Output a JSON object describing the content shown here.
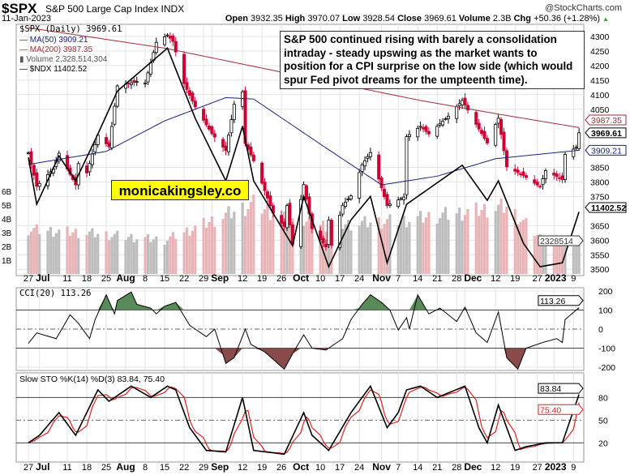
{
  "header": {
    "symbol": "$SPX",
    "name": "S&P 500 Large Cap Index INDX",
    "source": "@StockCharts.com",
    "date": "11-Jan-2023",
    "open_label": "Open",
    "open": "3932.35",
    "high_label": "High",
    "high": "3970.07",
    "low_label": "Low",
    "low": "3928.54",
    "close_label": "Close",
    "close": "3969.61",
    "volume_label": "Volume",
    "volume": "2.3B",
    "chg_label": "Chg",
    "chg": "+50.36 (+1.28%)"
  },
  "legend": {
    "price": "$SPX (Daily) 3969.61",
    "ma50": "MA(50) 3909.21",
    "ma200": "MA(200) 3987.35",
    "volume": "Volume 2,328,514,304",
    "ndx": "$NDX 11402.52"
  },
  "annotation": "S&P 500 continued rising with barely a consolidation intraday - steady upswing as the market wants to position for a CPI surprise on the low side (which would spur Fed pivot dreams for the umpteenth time).",
  "watermark": "monicakingsley.co",
  "tags": {
    "ma200": "3987.35",
    "close": "3969.61",
    "ma50": "3909.21",
    "ndx": "11402.52",
    "volume": "2328514",
    "cci": "113.26",
    "k": "83.84",
    "d": "75.40"
  },
  "colors": {
    "up": "#000000",
    "down": "#cc0033",
    "ma50": "#1a237e",
    "ma200": "#a52a3a",
    "cci_pos": "#5a8a5a",
    "cci_neg": "#8b4a4a",
    "sto_d": "#e02020",
    "volume_up": "#bdbdbd",
    "volume_down": "#e8b4b8"
  },
  "chart_data": [
    {
      "type": "candlestick",
      "title": "$SPX (Daily)",
      "ylim": [
        3475,
        4330
      ],
      "yticks": [
        4300,
        4250,
        4200,
        4150,
        4100,
        4050,
        3850,
        3800,
        3750,
        3650,
        3600,
        3550,
        3500
      ],
      "volume_ticks": [
        "6B",
        "5B",
        "4B",
        "3B",
        "2B",
        "1B"
      ],
      "xticks": [
        {
          "d": "2022-06-27",
          "l": "27"
        },
        {
          "d": "2022-07-01",
          "l": "Jul",
          "b": 1
        },
        {
          "d": "2022-07-11",
          "l": "11"
        },
        {
          "d": "2022-07-18",
          "l": "18"
        },
        {
          "d": "2022-07-25",
          "l": "25"
        },
        {
          "d": "2022-08-01",
          "l": "Aug",
          "b": 1
        },
        {
          "d": "2022-08-08",
          "l": "8"
        },
        {
          "d": "2022-08-15",
          "l": "15"
        },
        {
          "d": "2022-08-22",
          "l": "22"
        },
        {
          "d": "2022-08-29",
          "l": "29"
        },
        {
          "d": "2022-09-01",
          "l": "Sep",
          "b": 1
        },
        {
          "d": "2022-09-12",
          "l": "12"
        },
        {
          "d": "2022-09-19",
          "l": "19"
        },
        {
          "d": "2022-09-26",
          "l": "26"
        },
        {
          "d": "2022-10-03",
          "l": "Oct",
          "b": 1
        },
        {
          "d": "2022-10-10",
          "l": "10"
        },
        {
          "d": "2022-10-17",
          "l": "17"
        },
        {
          "d": "2022-10-24",
          "l": "24"
        },
        {
          "d": "2022-11-01",
          "l": "Nov",
          "b": 1
        },
        {
          "d": "2022-11-07",
          "l": "7"
        },
        {
          "d": "2022-11-14",
          "l": "14"
        },
        {
          "d": "2022-11-21",
          "l": "21"
        },
        {
          "d": "2022-11-28",
          "l": "28"
        },
        {
          "d": "2022-12-01",
          "l": "Dec",
          "b": 1
        },
        {
          "d": "2022-12-12",
          "l": "12"
        },
        {
          "d": "2022-12-19",
          "l": "19"
        },
        {
          "d": "2022-12-27",
          "l": "27"
        },
        {
          "d": "2023-01-02",
          "l": "2023",
          "b": 1
        },
        {
          "d": "2023-01-09",
          "l": "9"
        }
      ],
      "close": [
        [
          "2022-06-27",
          3900
        ],
        [
          "2022-06-30",
          3785
        ],
        [
          "2022-07-06",
          3845
        ],
        [
          "2022-07-08",
          3899
        ],
        [
          "2022-07-14",
          3790
        ],
        [
          "2022-07-15",
          3863
        ],
        [
          "2022-07-18",
          3831
        ],
        [
          "2022-07-22",
          3961
        ],
        [
          "2022-07-26",
          3921
        ],
        [
          "2022-07-29",
          4130
        ],
        [
          "2022-08-05",
          4145
        ],
        [
          "2022-08-08",
          4140
        ],
        [
          "2022-08-12",
          4280
        ],
        [
          "2022-08-16",
          4305
        ],
        [
          "2022-08-18",
          4283
        ],
        [
          "2022-08-22",
          4138
        ],
        [
          "2022-08-26",
          4058
        ],
        [
          "2022-09-01",
          3966
        ],
        [
          "2022-09-06",
          3908
        ],
        [
          "2022-09-09",
          4067
        ],
        [
          "2022-09-12",
          4110
        ],
        [
          "2022-09-13",
          3932
        ],
        [
          "2022-09-16",
          3873
        ],
        [
          "2022-09-23",
          3693
        ],
        [
          "2022-09-27",
          3647
        ],
        [
          "2022-09-28",
          3719
        ],
        [
          "2022-09-30",
          3586
        ],
        [
          "2022-10-04",
          3791
        ],
        [
          "2022-10-07",
          3640
        ],
        [
          "2022-10-12",
          3577
        ],
        [
          "2022-10-13",
          3669
        ],
        [
          "2022-10-14",
          3583
        ],
        [
          "2022-10-18",
          3720
        ],
        [
          "2022-10-21",
          3752
        ],
        [
          "2022-10-25",
          3859
        ],
        [
          "2022-10-28",
          3901
        ],
        [
          "2022-11-03",
          3719
        ],
        [
          "2022-11-09",
          3748
        ],
        [
          "2022-11-10",
          3956
        ],
        [
          "2022-11-15",
          3991
        ],
        [
          "2022-11-18",
          3965
        ],
        [
          "2022-11-25",
          4026
        ],
        [
          "2022-11-30",
          4080
        ],
        [
          "2022-12-05",
          3998
        ],
        [
          "2022-12-09",
          3934
        ],
        [
          "2022-12-13",
          4019
        ],
        [
          "2022-12-16",
          3852
        ],
        [
          "2022-12-22",
          3822
        ],
        [
          "2022-12-28",
          3783
        ],
        [
          "2022-12-30",
          3839
        ],
        [
          "2023-01-05",
          3808
        ],
        [
          "2023-01-06",
          3895
        ],
        [
          "2023-01-10",
          3919
        ],
        [
          "2023-01-11",
          3969
        ]
      ],
      "ma50": [
        [
          "2022-06-27",
          3860
        ],
        [
          "2022-07-25",
          3905
        ],
        [
          "2022-08-15",
          4010
        ],
        [
          "2022-09-06",
          4090
        ],
        [
          "2022-09-16",
          4085
        ],
        [
          "2022-10-10",
          3930
        ],
        [
          "2022-11-01",
          3790
        ],
        [
          "2022-11-21",
          3820
        ],
        [
          "2022-12-12",
          3880
        ],
        [
          "2023-01-11",
          3909
        ]
      ],
      "ma200": [
        [
          "2022-06-27",
          4330
        ],
        [
          "2022-08-15",
          4260
        ],
        [
          "2022-10-10",
          4150
        ],
        [
          "2022-11-15",
          4080
        ],
        [
          "2022-12-15",
          4030
        ],
        [
          "2023-01-11",
          3987
        ]
      ],
      "ndx": [
        [
          "2022-06-27",
          12100
        ],
        [
          "2022-06-30",
          11500
        ],
        [
          "2022-07-08",
          12120
        ],
        [
          "2022-07-14",
          11800
        ],
        [
          "2022-07-22",
          12400
        ],
        [
          "2022-07-29",
          12950
        ],
        [
          "2022-08-16",
          13500
        ],
        [
          "2022-08-26",
          12600
        ],
        [
          "2022-09-06",
          11800
        ],
        [
          "2022-09-12",
          12500
        ],
        [
          "2022-09-16",
          11800
        ],
        [
          "2022-09-30",
          10970
        ],
        [
          "2022-10-04",
          11600
        ],
        [
          "2022-10-13",
          10700
        ],
        [
          "2022-10-21",
          11300
        ],
        [
          "2022-10-28",
          11600
        ],
        [
          "2022-11-03",
          10750
        ],
        [
          "2022-11-10",
          11500
        ],
        [
          "2022-11-30",
          12000
        ],
        [
          "2022-12-09",
          11550
        ],
        [
          "2022-12-13",
          11800
        ],
        [
          "2022-12-22",
          11000
        ],
        [
          "2022-12-28",
          10700
        ],
        [
          "2023-01-05",
          10750
        ],
        [
          "2023-01-11",
          11402
        ]
      ],
      "volume_b": [
        [
          "2022-06-27",
          3.3
        ],
        [
          "2022-07-20",
          3.0
        ],
        [
          "2022-08-15",
          2.5
        ],
        [
          "2022-09-16",
          5.2
        ],
        [
          "2022-09-30",
          3.8
        ],
        [
          "2022-10-13",
          3.6
        ],
        [
          "2022-11-10",
          4.0
        ],
        [
          "2022-12-16",
          5.0
        ],
        [
          "2022-12-28",
          2.7
        ],
        [
          "2023-01-11",
          2.3
        ]
      ]
    },
    {
      "type": "line",
      "title": "CCI(20) 113.26",
      "ylim": [
        -230,
        230
      ],
      "yticks": [
        200,
        100,
        0,
        -100,
        -200
      ],
      "values": [
        [
          "2022-06-27",
          -75
        ],
        [
          "2022-06-30",
          -20
        ],
        [
          "2022-07-07",
          -50
        ],
        [
          "2022-07-12",
          75
        ],
        [
          "2022-07-15",
          30
        ],
        [
          "2022-07-19",
          -50
        ],
        [
          "2022-07-21",
          50
        ],
        [
          "2022-07-25",
          180
        ],
        [
          "2022-07-28",
          80
        ],
        [
          "2022-07-29",
          150
        ],
        [
          "2022-08-03",
          195
        ],
        [
          "2022-08-05",
          130
        ],
        [
          "2022-08-10",
          110
        ],
        [
          "2022-08-12",
          80
        ],
        [
          "2022-08-15",
          120
        ],
        [
          "2022-08-19",
          140
        ],
        [
          "2022-08-24",
          20
        ],
        [
          "2022-08-30",
          -40
        ],
        [
          "2022-09-02",
          0
        ],
        [
          "2022-09-06",
          -180
        ],
        [
          "2022-09-09",
          -150
        ],
        [
          "2022-09-13",
          0
        ],
        [
          "2022-09-15",
          -80
        ],
        [
          "2022-09-20",
          -120
        ],
        [
          "2022-09-27",
          -210
        ],
        [
          "2022-09-30",
          -130
        ],
        [
          "2022-10-04",
          -30
        ],
        [
          "2022-10-07",
          -100
        ],
        [
          "2022-10-12",
          -110
        ],
        [
          "2022-10-18",
          -50
        ],
        [
          "2022-10-21",
          50
        ],
        [
          "2022-10-25",
          130
        ],
        [
          "2022-10-28",
          180
        ],
        [
          "2022-11-01",
          140
        ],
        [
          "2022-11-04",
          100
        ],
        [
          "2022-11-07",
          -5
        ],
        [
          "2022-11-10",
          60
        ],
        [
          "2022-11-11",
          0
        ],
        [
          "2022-11-14",
          180
        ],
        [
          "2022-11-18",
          80
        ],
        [
          "2022-11-22",
          110
        ],
        [
          "2022-11-28",
          40
        ],
        [
          "2022-12-01",
          115
        ],
        [
          "2022-12-05",
          -20
        ],
        [
          "2022-12-09",
          -70
        ],
        [
          "2022-12-13",
          90
        ],
        [
          "2022-12-16",
          -150
        ],
        [
          "2022-12-20",
          -210
        ],
        [
          "2022-12-23",
          -100
        ],
        [
          "2022-12-29",
          -70
        ],
        [
          "2023-01-03",
          -50
        ],
        [
          "2023-01-05",
          -70
        ],
        [
          "2023-01-06",
          50
        ],
        [
          "2023-01-11",
          113
        ]
      ]
    },
    {
      "type": "line",
      "title": "Slow STO %K(14) %D(3) 83.84, 75.40",
      "ylim": [
        0,
        100
      ],
      "yticks": [
        80,
        50,
        20
      ],
      "k": [
        [
          "2022-06-27",
          20
        ],
        [
          "2022-07-01",
          30
        ],
        [
          "2022-07-08",
          60
        ],
        [
          "2022-07-14",
          30
        ],
        [
          "2022-07-22",
          90
        ],
        [
          "2022-07-26",
          75
        ],
        [
          "2022-08-03",
          95
        ],
        [
          "2022-08-10",
          80
        ],
        [
          "2022-08-16",
          95
        ],
        [
          "2022-08-19",
          90
        ],
        [
          "2022-08-24",
          40
        ],
        [
          "2022-08-30",
          10
        ],
        [
          "2022-09-06",
          8
        ],
        [
          "2022-09-12",
          80
        ],
        [
          "2022-09-16",
          10
        ],
        [
          "2022-09-27",
          5
        ],
        [
          "2022-10-04",
          60
        ],
        [
          "2022-10-07",
          30
        ],
        [
          "2022-10-13",
          10
        ],
        [
          "2022-10-21",
          60
        ],
        [
          "2022-10-28",
          95
        ],
        [
          "2022-11-03",
          40
        ],
        [
          "2022-11-07",
          60
        ],
        [
          "2022-11-10",
          90
        ],
        [
          "2022-11-15",
          95
        ],
        [
          "2022-11-21",
          80
        ],
        [
          "2022-12-01",
          95
        ],
        [
          "2022-12-06",
          40
        ],
        [
          "2022-12-09",
          20
        ],
        [
          "2022-12-13",
          70
        ],
        [
          "2022-12-19",
          10
        ],
        [
          "2022-12-23",
          15
        ],
        [
          "2022-12-30",
          20
        ],
        [
          "2023-01-05",
          20
        ],
        [
          "2023-01-11",
          84
        ]
      ]
    }
  ]
}
